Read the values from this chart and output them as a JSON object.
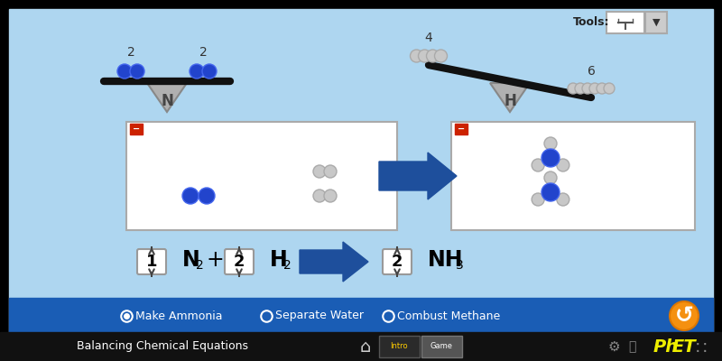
{
  "bg_main": "#aed6f0",
  "bg_bottom_bar": "#1a5db5",
  "bg_black_bar": "#111111",
  "arrow_color": "#1e4f9c",
  "title_text": "Balancing Chemical Equations",
  "radio_options": [
    "Make Ammonia",
    "Separate Water",
    "Combust Methane"
  ],
  "tools_label": "Tools:",
  "blue_atom": "#2244cc",
  "blue_atom_light": "#4466ee",
  "gray_atom": "#c8c8c8",
  "gray_atom_edge": "#aaaaaa",
  "red_square": "#cc2200",
  "white_box_edge": "#aaaaaa",
  "tri_face": "#b0b0b0",
  "tri_edge": "#888888",
  "beam_color": "#111111"
}
